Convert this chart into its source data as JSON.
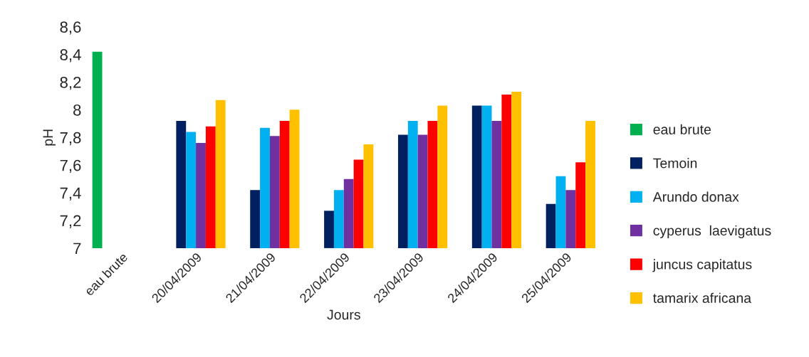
{
  "chart_data": {
    "type": "bar",
    "xlabel": "Jours",
    "ylabel": "pH",
    "categories": [
      "eau brute",
      "20/04/2009",
      "21/04/2009",
      "22/04/2009",
      "23/04/2009",
      "24/04/2009",
      "25/04/2009"
    ],
    "series": [
      {
        "name": "eau brute",
        "color": "#00b050",
        "values": [
          8.42,
          null,
          null,
          null,
          null,
          null,
          null
        ]
      },
      {
        "name": "Temoin",
        "color": "#002060",
        "values": [
          null,
          7.92,
          7.42,
          7.27,
          7.82,
          8.03,
          7.32
        ]
      },
      {
        "name": "Arundo donax",
        "color": "#00b0f0",
        "values": [
          null,
          7.84,
          7.87,
          7.42,
          7.92,
          8.03,
          7.52
        ]
      },
      {
        "name": "cyperus  laevigatus",
        "color": "#7030a0",
        "values": [
          null,
          7.76,
          7.81,
          7.5,
          7.82,
          7.92,
          7.42
        ]
      },
      {
        "name": "juncus capitatus",
        "color": "#ff0000",
        "values": [
          null,
          7.88,
          7.92,
          7.64,
          7.92,
          8.11,
          7.62
        ]
      },
      {
        "name": "tamarix africana",
        "color": "#ffc000",
        "values": [
          null,
          8.07,
          8.0,
          7.75,
          8.03,
          8.13,
          7.92
        ]
      }
    ],
    "ylim": [
      7,
      8.6
    ],
    "yticks": [
      7,
      {
        "value": 7.2,
        "label": "7,2"
      },
      {
        "value": 7.4,
        "label": "7,4"
      },
      {
        "value": 7.6,
        "label": "7,6"
      },
      {
        "value": 7.8,
        "label": "7,8"
      },
      8,
      {
        "value": 8.2,
        "label": "8,2"
      },
      {
        "value": 8.4,
        "label": "8,4"
      },
      {
        "value": 8.6,
        "label": "8,6"
      }
    ],
    "grid": false,
    "legend": "right"
  }
}
